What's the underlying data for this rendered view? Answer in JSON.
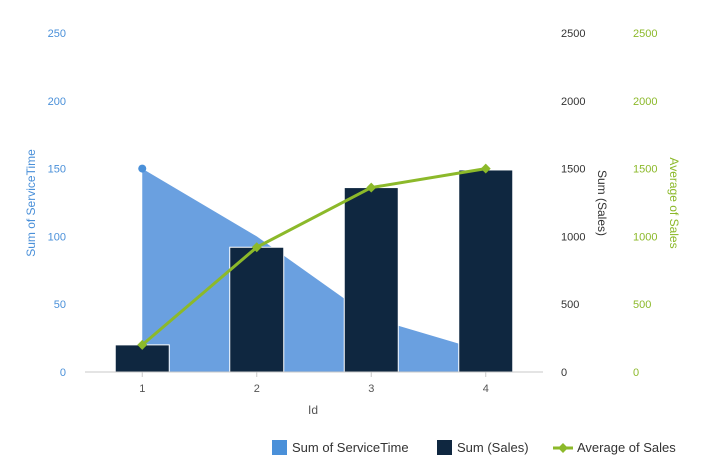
{
  "colors": {
    "service_time": "#6aa0e0",
    "service_time_line": "#4a90d9",
    "sales": "#0f2740",
    "average": "#8cb92a",
    "axis_left": "#4a90d9",
    "axis_sales": "#333333",
    "axis_avg": "#8cb92a",
    "baseline": "#c8c8c8",
    "tick_x": "#555555"
  },
  "chart_data": {
    "type": "bar",
    "x_axis": {
      "label": "Id",
      "categories": [
        "1",
        "2",
        "3",
        "4"
      ]
    },
    "y_axes": {
      "service_time": {
        "label": "Sum of ServiceTime",
        "min": 0,
        "max": 250,
        "ticks": [
          "0",
          "50",
          "100",
          "150",
          "200",
          "250"
        ]
      },
      "sales": {
        "label": "Sum (Sales)",
        "min": 0,
        "max": 2500,
        "ticks": [
          "0",
          "500",
          "1000",
          "1500",
          "2000",
          "2500"
        ]
      },
      "average": {
        "label": "Average of Sales",
        "min": 0,
        "max": 2500,
        "ticks": [
          "0",
          "500",
          "1000",
          "1500",
          "2000",
          "2500"
        ]
      }
    },
    "series": [
      {
        "name": "Sum of ServiceTime",
        "type": "area",
        "axis": "service_time",
        "values": [
          150,
          100,
          40,
          15
        ]
      },
      {
        "name": "Sum (Sales)",
        "type": "bar",
        "axis": "sales",
        "values": [
          200,
          920,
          1360,
          1490
        ]
      },
      {
        "name": "Average of Sales",
        "type": "line",
        "axis": "average",
        "values": [
          200,
          920,
          1360,
          1500
        ]
      }
    ],
    "legend": {
      "position": "bottom-right"
    },
    "grid": false
  }
}
